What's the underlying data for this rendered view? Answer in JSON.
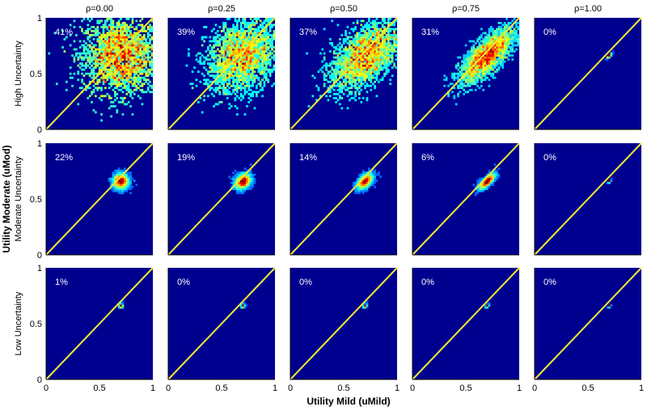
{
  "figure": {
    "title": "",
    "xlabel": "Utility Mild (uMild)",
    "ylabel": "Utility Moderate (uMod)"
  },
  "colors": {
    "background": "#00008f",
    "diagonal": "#f2ea2e",
    "axis": "#000000",
    "text_in_panel": "#ffffff"
  },
  "chart_data": {
    "type": "heatmap",
    "grid": false,
    "rows": [
      "High Uncertainty",
      "Moderate Uncertainty",
      "Low Uncertainty"
    ],
    "columns": [
      "ρ=0.00",
      "ρ=0.25",
      "ρ=0.50",
      "ρ=0.75",
      "ρ=1.00"
    ],
    "xlim": [
      0,
      1
    ],
    "ylim": [
      0,
      1
    ],
    "xticks": [
      "0",
      "0.5",
      "1"
    ],
    "yticks": [
      "0",
      "0.5",
      "1"
    ],
    "reference_line": "y = x",
    "percentages": [
      [
        "41%",
        "39%",
        "37%",
        "31%",
        "0%"
      ],
      [
        "22%",
        "19%",
        "14%",
        "6%",
        "0%"
      ],
      [
        "1%",
        "0%",
        "0%",
        "0%",
        "0%"
      ]
    ],
    "distribution_center": {
      "uMild": 0.7,
      "uMod": 0.66
    },
    "distribution_spread": [
      [
        0.18,
        0.17,
        0.16,
        0.13,
        0.01
      ],
      [
        0.035,
        0.035,
        0.035,
        0.035,
        0.005
      ],
      [
        0.008,
        0.007,
        0.007,
        0.006,
        0.004
      ]
    ],
    "correlation": [
      0.0,
      0.25,
      0.5,
      0.75,
      1.0
    ]
  }
}
